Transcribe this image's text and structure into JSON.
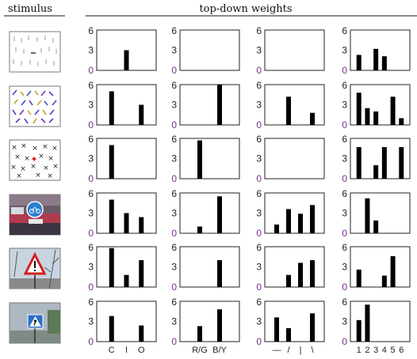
{
  "header": {
    "stimulus": "stimulus",
    "weights": "top-down weights"
  },
  "chart_data": {
    "type": "bar",
    "ylim": [
      0,
      6
    ],
    "yticks": [
      "6",
      "3",
      "0"
    ],
    "column_labels": [
      [
        "C",
        "I",
        "O"
      ],
      [
        "R/G",
        "B/Y"
      ],
      [
        "—",
        "/",
        "|",
        "\\"
      ],
      [
        "1",
        "2",
        "3",
        "4",
        "5",
        "6"
      ]
    ],
    "rows": [
      {
        "stimulus": "bars-oddball",
        "panels": [
          [
            0,
            3,
            0
          ],
          [
            0,
            0
          ],
          [
            0,
            0,
            0,
            0
          ],
          [
            2.3,
            0,
            3.2,
            2.1,
            0,
            0
          ]
        ]
      },
      {
        "stimulus": "colored-slant-bars",
        "panels": [
          [
            5,
            0,
            3
          ],
          [
            0,
            6
          ],
          [
            0,
            4.2,
            0,
            1.8
          ],
          [
            4.8,
            2.5,
            2,
            0,
            4.2,
            1
          ]
        ]
      },
      {
        "stimulus": "x-marks-red-target",
        "panels": [
          [
            5,
            0,
            0
          ],
          [
            5.7,
            0
          ],
          [
            0,
            0,
            0,
            0
          ],
          [
            4.7,
            0,
            2,
            4.7,
            0,
            4.7
          ]
        ]
      },
      {
        "stimulus": "bike-sign-photo",
        "panels": [
          [
            5,
            3,
            2.4
          ],
          [
            1,
            5.5
          ],
          [
            1.3,
            3.6,
            2.9,
            4.2
          ],
          [
            0,
            5.2,
            1.9,
            0,
            0,
            0
          ]
        ]
      },
      {
        "stimulus": "warning-sign-photo",
        "panels": [
          [
            5.8,
            1.8,
            4
          ],
          [
            0,
            4
          ],
          [
            0,
            1.8,
            3.6,
            4
          ],
          [
            2.6,
            0,
            0,
            1.7,
            4.6,
            0
          ]
        ]
      },
      {
        "stimulus": "crossing-sign-photo",
        "panels": [
          [
            3.8,
            0,
            2.4
          ],
          [
            2.3,
            4.8
          ],
          [
            3.6,
            2,
            0,
            4.2
          ],
          [
            3.2,
            5.5,
            0,
            0,
            0,
            0
          ]
        ]
      }
    ]
  }
}
